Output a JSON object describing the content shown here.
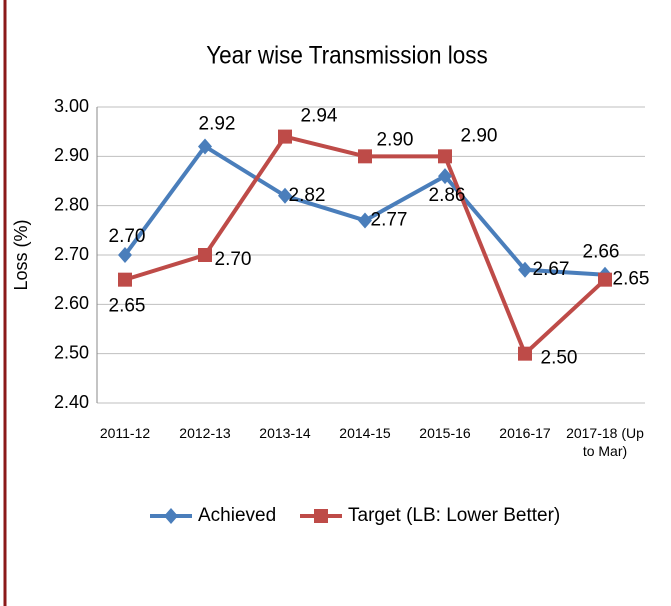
{
  "chart_data": {
    "type": "line",
    "title": "Year wise Transmission loss",
    "y_label": "Loss (%)",
    "categories": [
      "2011-12",
      "2012-13",
      "2013-14",
      "2014-15",
      "2015-16",
      "2016-17",
      "2017-18 (Up to Mar)"
    ],
    "series": [
      {
        "name": "Achieved",
        "color": "#4a7ebb",
        "marker": "diamond",
        "values": [
          2.7,
          2.92,
          2.82,
          2.77,
          2.86,
          2.67,
          2.66
        ],
        "value_labels": [
          "2.70",
          "2.92",
          "2.82",
          "2.77",
          "2.86",
          "2.67",
          "2.66"
        ]
      },
      {
        "name": "Target (LB: Lower Better)",
        "color": "#be4b48",
        "marker": "square",
        "values": [
          2.65,
          2.7,
          2.94,
          2.9,
          2.9,
          2.5,
          2.65
        ],
        "value_labels": [
          "2.65",
          "2.70",
          "2.94",
          "2.90",
          "2.90",
          "2.50",
          "2.65"
        ]
      }
    ],
    "ylim": [
      2.4,
      3.0
    ],
    "yticks": [
      {
        "value": 2.4,
        "label": "2.40"
      },
      {
        "value": 2.5,
        "label": "2.50"
      },
      {
        "value": 2.6,
        "label": "2.60"
      },
      {
        "value": 2.7,
        "label": "2.70"
      },
      {
        "value": 2.8,
        "label": "2.80"
      },
      {
        "value": 2.9,
        "label": "2.90"
      },
      {
        "value": 3.0,
        "label": "3.00"
      }
    ],
    "grid": true,
    "legend": "bottom"
  }
}
